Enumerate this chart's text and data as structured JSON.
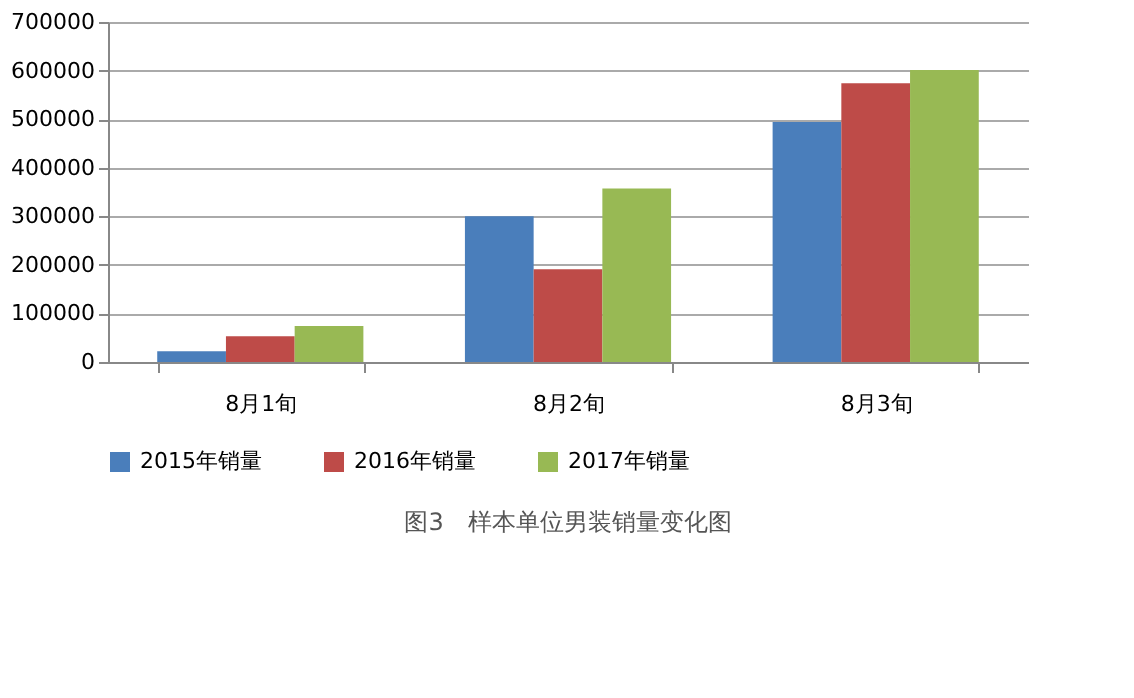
{
  "chart_data": {
    "type": "bar",
    "categories": [
      "8月1旬",
      "8月2旬",
      "8月3旬"
    ],
    "series": [
      {
        "name": "2015年销量",
        "color": "#4a7ebb",
        "values": [
          22000,
          300000,
          494000
        ]
      },
      {
        "name": "2016年销量",
        "color": "#be4b48",
        "values": [
          53000,
          191000,
          574000
        ]
      },
      {
        "name": "2017年销量",
        "color": "#98b954",
        "values": [
          74000,
          357000,
          601000
        ]
      }
    ],
    "ylim": [
      0,
      700000
    ],
    "yticks": [
      0,
      100000,
      200000,
      300000,
      400000,
      500000,
      600000,
      700000
    ],
    "grid": "y",
    "legend": "bottom",
    "annotations": [
      "图3　样本单位男装销量变化图"
    ]
  }
}
